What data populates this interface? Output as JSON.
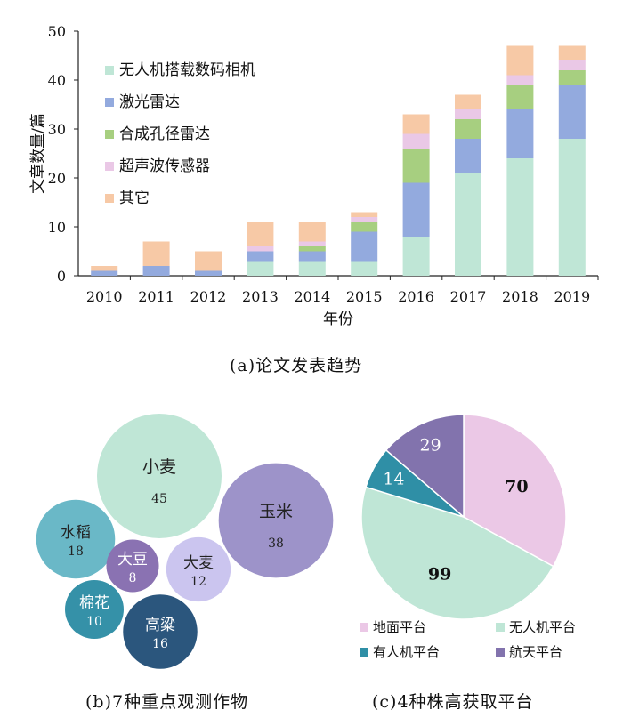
{
  "charts": {
    "a": {
      "caption": "(a)论文发表趋势",
      "ylabel": "文章数量/篇",
      "xlabel": "年份",
      "yticks": [
        0,
        10,
        20,
        30,
        40,
        50
      ],
      "ylim": [
        0,
        50
      ]
    },
    "b": {
      "caption": "(b)7种重点观测作物"
    },
    "c": {
      "caption": "(c)4种株高获取平台"
    }
  },
  "chart_data": [
    {
      "type": "bar",
      "stacked": true,
      "categories": [
        "2010",
        "2011",
        "2012",
        "2013",
        "2014",
        "2015",
        "2016",
        "2017",
        "2018",
        "2019"
      ],
      "series": [
        {
          "name": "无人机搭载数码相机",
          "color": "#bfe6d6",
          "values": [
            0,
            0,
            0,
            3,
            3,
            3,
            8,
            21,
            24,
            28
          ]
        },
        {
          "name": "激光雷达",
          "color": "#93aade",
          "values": [
            1,
            2,
            1,
            2,
            2,
            6,
            11,
            7,
            10,
            11
          ]
        },
        {
          "name": "合成孔径雷达",
          "color": "#a7cf80",
          "values": [
            0,
            0,
            0,
            0,
            1,
            2,
            7,
            4,
            5,
            3
          ]
        },
        {
          "name": "超声波传感器",
          "color": "#eac8e6",
          "values": [
            0,
            0,
            0,
            1,
            1,
            1,
            3,
            2,
            2,
            2
          ]
        },
        {
          "name": "其它",
          "color": "#f7c9a6",
          "values": [
            1,
            5,
            4,
            5,
            4,
            1,
            4,
            3,
            6,
            3
          ]
        }
      ],
      "ylim": [
        0,
        50
      ],
      "xlabel": "年份",
      "ylabel": "文章数量/篇",
      "legend": "top-left"
    },
    {
      "type": "bubble",
      "items": [
        {
          "label": "小麦",
          "value": 45,
          "color": "#bfe6d6",
          "text_color": "#222222"
        },
        {
          "label": "玉米",
          "value": 38,
          "color": "#9d93c9",
          "text_color": "#222222"
        },
        {
          "label": "水稻",
          "value": 18,
          "color": "#6ab8c7",
          "text_color": "#222222"
        },
        {
          "label": "大豆",
          "value": 8,
          "color": "#8a72b2",
          "text_color": "#ffffff"
        },
        {
          "label": "大麦",
          "value": 12,
          "color": "#cbc5ef",
          "text_color": "#222222"
        },
        {
          "label": "棉花",
          "value": 10,
          "color": "#3591a8",
          "text_color": "#ffffff"
        },
        {
          "label": "高粱",
          "value": 16,
          "color": "#2b567d",
          "text_color": "#ffffff"
        }
      ]
    },
    {
      "type": "pie",
      "slices": [
        {
          "label": "地面平台",
          "value": 70,
          "color": "#ebc8e6"
        },
        {
          "label": "无人机平台",
          "value": 99,
          "color": "#bfe6d6"
        },
        {
          "label": "有人机平台",
          "value": 14,
          "color": "#2f8fa6"
        },
        {
          "label": "航天平台",
          "value": 29,
          "color": "#8273ad"
        }
      ],
      "legend": "bottom"
    }
  ]
}
